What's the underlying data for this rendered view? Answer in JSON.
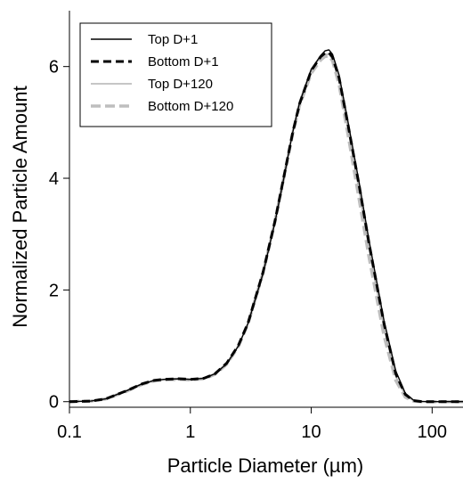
{
  "chart_data": {
    "type": "line",
    "title": "",
    "xlabel": "Particle Diameter (µm)",
    "ylabel": "Normalized Particle Amount",
    "xscale": "log",
    "xlim": [
      0.1,
      180
    ],
    "ylim": [
      -0.1,
      7.0
    ],
    "xticks": [
      0.1,
      1,
      10,
      100
    ],
    "xtick_labels": [
      "0.1",
      "1",
      "10",
      "100"
    ],
    "yticks": [
      0,
      2,
      4,
      6
    ],
    "ytick_labels": [
      "0",
      "2",
      "4",
      "6"
    ],
    "grid": false,
    "legend_position": "top-left",
    "x": [
      0.1,
      0.15,
      0.2,
      0.3,
      0.4,
      0.5,
      0.6,
      0.8,
      1,
      1.3,
      1.6,
      2,
      2.5,
      3,
      4,
      5,
      6,
      7,
      8,
      10,
      12,
      13,
      14,
      15,
      17,
      20,
      25,
      30,
      40,
      50,
      60,
      70,
      80,
      90,
      100,
      120,
      150,
      180
    ],
    "series": [
      {
        "name": "Top D+1",
        "style": "solid",
        "color": "#000000",
        "values": [
          0,
          0.01,
          0.05,
          0.2,
          0.32,
          0.38,
          0.4,
          0.41,
          0.4,
          0.42,
          0.5,
          0.68,
          1.0,
          1.4,
          2.3,
          3.2,
          4.05,
          4.8,
          5.35,
          5.95,
          6.2,
          6.28,
          6.3,
          6.22,
          5.85,
          5.05,
          3.9,
          2.9,
          1.45,
          0.55,
          0.15,
          0.03,
          0.005,
          0,
          0,
          0,
          0,
          0
        ]
      },
      {
        "name": "Bottom D+1",
        "style": "dashed",
        "color": "#000000",
        "values": [
          0,
          0.01,
          0.05,
          0.2,
          0.32,
          0.38,
          0.4,
          0.41,
          0.4,
          0.42,
          0.5,
          0.69,
          1.01,
          1.41,
          2.32,
          3.22,
          4.07,
          4.8,
          5.33,
          5.93,
          6.18,
          6.24,
          6.25,
          6.17,
          5.8,
          5.0,
          3.85,
          2.85,
          1.4,
          0.5,
          0.13,
          0.02,
          0.003,
          0,
          0,
          0,
          0,
          0
        ]
      },
      {
        "name": "Top D+120",
        "style": "solid",
        "color": "#b4b4b4",
        "values": [
          0,
          0.01,
          0.05,
          0.19,
          0.31,
          0.37,
          0.39,
          0.4,
          0.39,
          0.41,
          0.49,
          0.67,
          1.0,
          1.42,
          2.35,
          3.27,
          4.12,
          4.85,
          5.38,
          5.96,
          6.17,
          6.22,
          6.22,
          6.13,
          5.74,
          4.92,
          3.75,
          2.75,
          1.32,
          0.45,
          0.11,
          0.02,
          0.002,
          0,
          0,
          0,
          0,
          0
        ]
      },
      {
        "name": "Bottom D+120",
        "style": "dashed",
        "color": "#bebebe",
        "values": [
          0,
          0.01,
          0.05,
          0.19,
          0.31,
          0.37,
          0.39,
          0.4,
          0.39,
          0.41,
          0.49,
          0.67,
          0.99,
          1.4,
          2.31,
          3.22,
          4.06,
          4.78,
          5.3,
          5.88,
          6.12,
          6.18,
          6.19,
          6.1,
          5.68,
          4.82,
          3.6,
          2.6,
          1.18,
          0.38,
          0.08,
          0.01,
          0.001,
          0,
          0,
          0,
          0,
          0
        ]
      }
    ]
  }
}
